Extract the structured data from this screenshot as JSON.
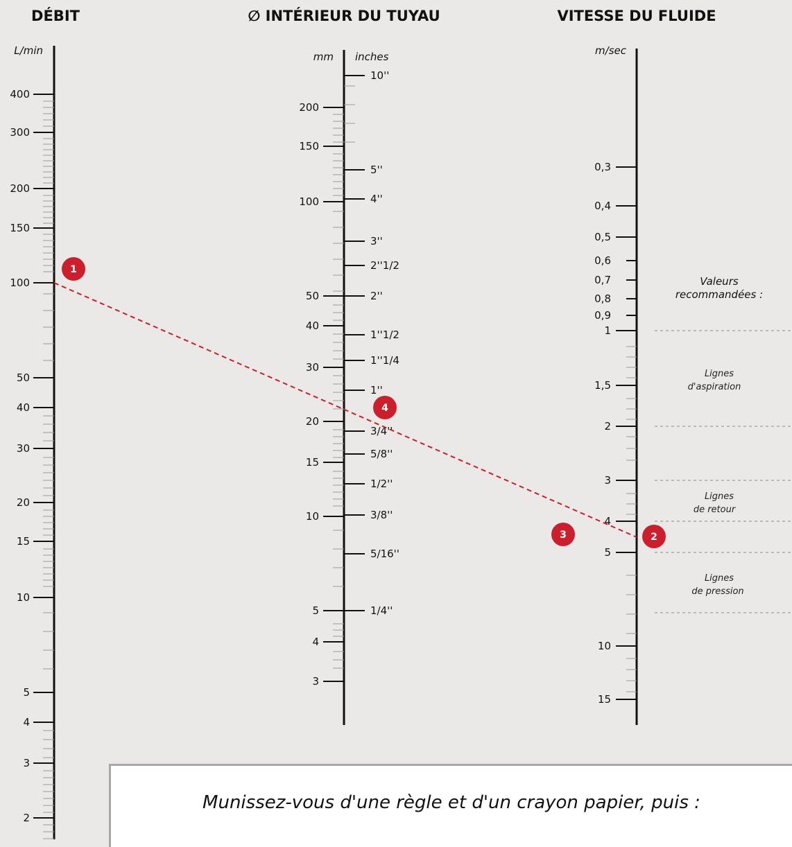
{
  "colors": {
    "background": "#ebe9e7",
    "axis": "#111111",
    "accent": "#cc1f2d",
    "minor_tick": "#9a9a9a"
  },
  "headers": {
    "flow": "DÉBIT",
    "pipe": "∅ INTÉRIEUR DU TUYAU",
    "velocity": "VITESSE DU FLUIDE"
  },
  "units": {
    "flow": "L/min",
    "pipe_mm": "mm",
    "pipe_inches": "inches",
    "velocity": "m/sec"
  },
  "scales": {
    "flow": [
      "400",
      "300",
      "200",
      "150",
      "100",
      "50",
      "40",
      "30",
      "20",
      "15",
      "10",
      "5",
      "4",
      "3",
      "2"
    ],
    "pipe_mm": [
      "200",
      "150",
      "100",
      "50",
      "40",
      "30",
      "20",
      "15",
      "10",
      "5",
      "4",
      "3"
    ],
    "pipe_inches": [
      "10''",
      "5''",
      "4''",
      "3''",
      "2''1/2",
      "2''",
      "1''1/2",
      "1''1/4",
      "1''",
      "3/4''",
      "5/8''",
      "1/2''",
      "3/8''",
      "5/16''",
      "1/4''"
    ],
    "velocity": [
      "0,3",
      "0,4",
      "0,5",
      "0,6",
      "0,7",
      "0,8",
      "0,9",
      "1",
      "1,5",
      "2",
      "3",
      "4",
      "5",
      "10",
      "15"
    ]
  },
  "recommended": {
    "title_line1": "Valeurs",
    "title_line2": "recommandées :",
    "suction_line1": "Lignes",
    "suction_line2": "d'aspiration",
    "return_line1": "Lignes",
    "return_line2": "de retour",
    "pressure_line1": "Lignes",
    "pressure_line2": "de pression"
  },
  "markers": [
    "1",
    "2",
    "3",
    "4"
  ],
  "instructions": "Munissez-vous d'une règle et d'un crayon papier, puis :"
}
